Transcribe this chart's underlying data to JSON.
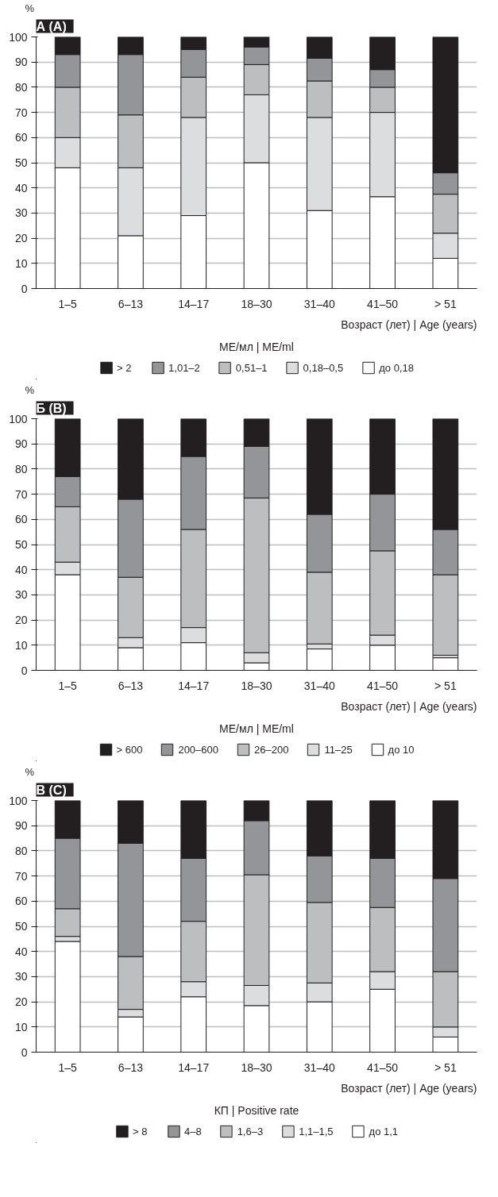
{
  "chart_data": [
    {
      "type": "bar",
      "title": "А (A)",
      "ylabel": "%",
      "xlabel": "Возраст (лет) | Age (years)",
      "legend_title": "МЕ/мл | МЕ/ml",
      "stacked": true,
      "legend": "bottom",
      "grid": "y",
      "categories": [
        "1–5",
        "6–13",
        "14–17",
        "18–30",
        "31–40",
        "41–50",
        "> 51"
      ],
      "ylim": [
        0,
        100
      ],
      "yticks": [
        0,
        10,
        20,
        30,
        40,
        50,
        60,
        70,
        80,
        90,
        100
      ],
      "series": [
        {
          "name": "до 0,18",
          "color": "#ffffff",
          "values": [
            48,
            21,
            29,
            50,
            31,
            36.5,
            12
          ]
        },
        {
          "name": "0,18–0,5",
          "color": "#dcddde",
          "values": [
            12,
            27,
            39,
            27,
            37,
            33.5,
            10
          ]
        },
        {
          "name": "0,51–1",
          "color": "#bcbec0",
          "values": [
            20,
            21,
            16,
            12,
            14.5,
            10,
            15.5
          ]
        },
        {
          "name": "1,01–2",
          "color": "#939598",
          "values": [
            13,
            24,
            11,
            7,
            9,
            7,
            8.5
          ]
        },
        {
          "name": "> 2",
          "color": "#231f20",
          "values": [
            7,
            7,
            5,
            4,
            8.5,
            13,
            54
          ]
        }
      ]
    },
    {
      "type": "bar",
      "title": "Б (B)",
      "ylabel": "%",
      "xlabel": "Возраст (лет) | Age (years)",
      "legend_title": "МЕ/мл | МЕ/ml",
      "stacked": true,
      "legend": "bottom",
      "grid": "y",
      "categories": [
        "1–5",
        "6–13",
        "14–17",
        "18–30",
        "31–40",
        "41–50",
        "> 51"
      ],
      "ylim": [
        0,
        100
      ],
      "yticks": [
        0,
        10,
        20,
        30,
        40,
        50,
        60,
        70,
        80,
        90,
        100
      ],
      "series": [
        {
          "name": "до 10",
          "color": "#ffffff",
          "values": [
            38,
            9,
            11,
            3,
            8.5,
            10,
            5
          ]
        },
        {
          "name": "11–25",
          "color": "#dcddde",
          "values": [
            5,
            4,
            6,
            4,
            2,
            4,
            1
          ]
        },
        {
          "name": "26–200",
          "color": "#bcbec0",
          "values": [
            22,
            24,
            39,
            61.5,
            28.5,
            33.5,
            32
          ]
        },
        {
          "name": "200–600",
          "color": "#939598",
          "values": [
            12,
            31,
            29,
            20.5,
            23,
            22.5,
            18
          ]
        },
        {
          "name": "> 600",
          "color": "#231f20",
          "values": [
            23,
            32,
            15,
            11,
            38,
            30,
            44
          ]
        }
      ]
    },
    {
      "type": "bar",
      "title": "В (C)",
      "ylabel": "%",
      "xlabel": "Возраст (лет) | Age (years)",
      "legend_title": "КП | Positive rate",
      "stacked": true,
      "legend": "bottom",
      "grid": "y",
      "categories": [
        "1–5",
        "6–13",
        "14–17",
        "18–30",
        "31–40",
        "41–50",
        "> 51"
      ],
      "ylim": [
        0,
        100
      ],
      "yticks": [
        0,
        10,
        20,
        30,
        40,
        50,
        60,
        70,
        80,
        90,
        100
      ],
      "series": [
        {
          "name": "до 1,1",
          "color": "#ffffff",
          "values": [
            44,
            14,
            22,
            18.5,
            20,
            25,
            6
          ]
        },
        {
          "name": "1,1–1,5",
          "color": "#dcddde",
          "values": [
            2,
            3,
            6,
            8,
            7.5,
            7,
            4
          ]
        },
        {
          "name": "1,6–3",
          "color": "#bcbec0",
          "values": [
            11,
            21,
            24,
            44,
            32,
            25.5,
            22
          ]
        },
        {
          "name": "4–8",
          "color": "#939598",
          "values": [
            28,
            45,
            25,
            21.5,
            18.5,
            19.5,
            37
          ]
        },
        {
          "name": "> 8",
          "color": "#231f20",
          "values": [
            15,
            17,
            23,
            8,
            22,
            23,
            31
          ]
        }
      ]
    }
  ]
}
